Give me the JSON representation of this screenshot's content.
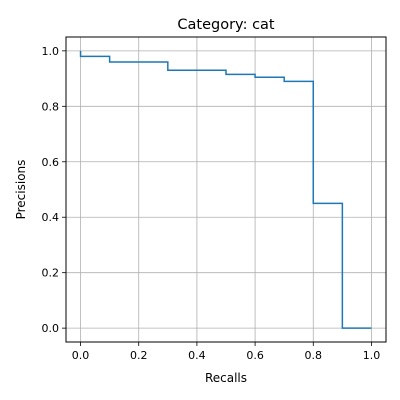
{
  "chart_data": {
    "type": "line",
    "step": true,
    "title": "Category: cat",
    "xlabel": "Recalls",
    "ylabel": "Precisions",
    "xlim": [
      -0.05,
      1.05
    ],
    "ylim": [
      -0.05,
      1.05
    ],
    "x_ticks": [
      "0.0",
      "0.2",
      "0.4",
      "0.6",
      "0.8",
      "1.0"
    ],
    "y_ticks": [
      "0.0",
      "0.2",
      "0.4",
      "0.6",
      "0.8",
      "1.0"
    ],
    "grid": true,
    "line_color": "#1f77b4",
    "series": [
      {
        "x": [
          0.0,
          0.0,
          0.1,
          0.1,
          0.3,
          0.3,
          0.5,
          0.5,
          0.6,
          0.6,
          0.7,
          0.7,
          0.8,
          0.8,
          0.9,
          0.9,
          1.0
        ],
        "y": [
          1.0,
          0.98,
          0.98,
          0.96,
          0.96,
          0.93,
          0.93,
          0.915,
          0.915,
          0.905,
          0.905,
          0.89,
          0.89,
          0.45,
          0.45,
          0.0,
          0.0
        ]
      }
    ]
  }
}
